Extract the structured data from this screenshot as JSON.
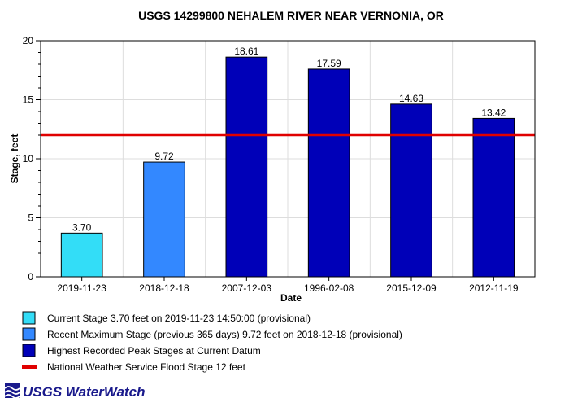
{
  "chart_data": {
    "type": "bar",
    "title": "USGS 14299800 NEHALEM RIVER NEAR VERNONIA, OR",
    "xlabel": "Date",
    "ylabel": "Stage, feet",
    "ylim": [
      0,
      20
    ],
    "yticks": [
      0,
      5,
      10,
      15,
      20
    ],
    "categories": [
      "2019-11-23",
      "2018-12-18",
      "2007-12-03",
      "1996-02-08",
      "2015-12-09",
      "2012-11-19"
    ],
    "values": [
      3.7,
      9.72,
      18.61,
      17.59,
      14.63,
      13.42
    ],
    "value_labels": [
      "3.70",
      "9.72",
      "18.61",
      "17.59",
      "14.63",
      "13.42"
    ],
    "bar_colors": [
      "#33ddf7",
      "#3388ff",
      "#0000b8",
      "#0000b8",
      "#0000b8",
      "#0000b8"
    ],
    "flood_stage": 12,
    "flood_color": "#e00000",
    "grid": true,
    "legend_position": "bottom",
    "legend": [
      {
        "label": "Current Stage 3.70 feet on 2019-11-23 14:50:00 (provisional)",
        "color": "#33ddf7",
        "kind": "box"
      },
      {
        "label": "Recent Maximum Stage (previous 365 days) 9.72 feet on 2018-12-18 (provisional)",
        "color": "#3388ff",
        "kind": "box"
      },
      {
        "label": "Highest Recorded Peak Stages at Current Datum",
        "color": "#0000b8",
        "kind": "box"
      },
      {
        "label": "National Weather Service Flood Stage 12 feet",
        "color": "#e00000",
        "kind": "line"
      }
    ]
  },
  "footer": {
    "logo_text": "USGS WaterWatch"
  }
}
